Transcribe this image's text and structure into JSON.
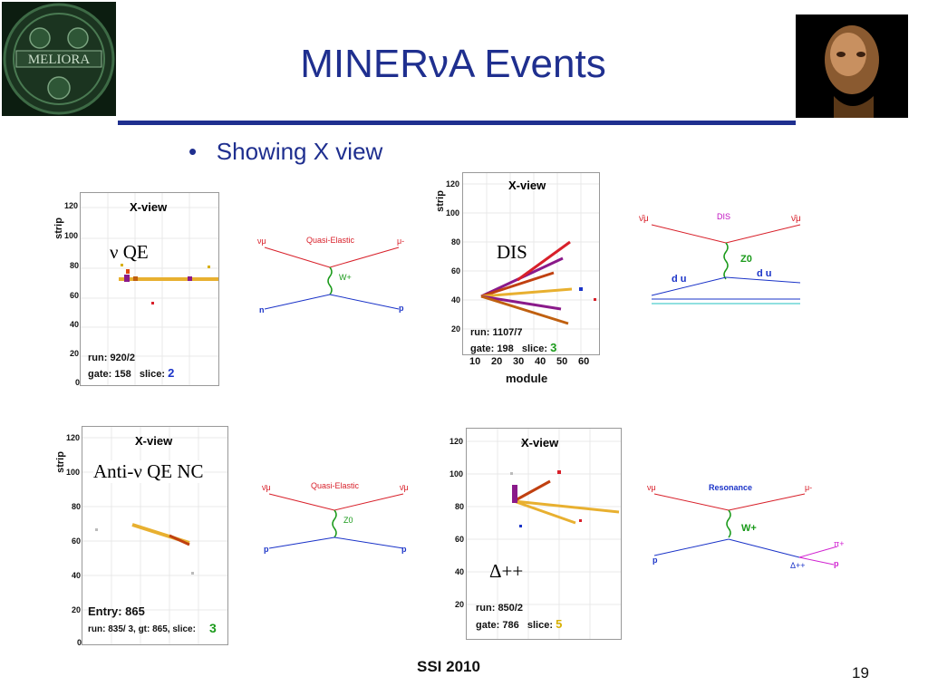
{
  "slide": {
    "title": "MINERνA Events",
    "bullet": "Showing X view",
    "footer": "SSI 2010",
    "page_number": "19",
    "logo_left_text": "MELIORA",
    "colors": {
      "title": "#1f2f8f",
      "rule": "#1f2f8f"
    }
  },
  "plots": {
    "p1": {
      "title": "X-view",
      "ylabel": "strip",
      "yticks": [
        "120",
        "100",
        "80",
        "60",
        "40",
        "20",
        "0"
      ],
      "run": "run: 920/2",
      "gate": "gate: 158",
      "slice_label": "slice:",
      "slice_value": "2",
      "slice_color": "#1a33c8",
      "annotation": "ν QE"
    },
    "p2": {
      "title": "X-view",
      "ylabel": "strip",
      "xlabel": "module",
      "yticks": [
        "120",
        "100",
        "80",
        "60",
        "40",
        "20"
      ],
      "xticks": [
        "10",
        "20",
        "30",
        "40",
        "50",
        "60"
      ],
      "run": "run: 1107/7",
      "gate": "gate: 198",
      "slice_label": "slice:",
      "slice_value": "3",
      "slice_color": "#1a9a1a",
      "annotation": "DIS"
    },
    "p3": {
      "title": "X-view",
      "ylabel": "strip",
      "yticks": [
        "120",
        "100",
        "80",
        "60",
        "40",
        "20",
        "0"
      ],
      "entry": "Entry: 865",
      "run": "run:  835/ 3,  gt:  865, slice:",
      "slice_value": "3",
      "slice_color": "#1a9a1a",
      "annotation": "Anti-ν QE NC"
    },
    "p4": {
      "title": "X-view",
      "yticks": [
        "120",
        "100",
        "80",
        "60",
        "40",
        "20"
      ],
      "run": "run: 850/2",
      "gate": "gate: 786",
      "slice_label": "slice:",
      "slice_value": "5",
      "slice_color": "#d8b000",
      "annotation": "Δ++"
    }
  },
  "diagrams": {
    "d1": {
      "title": "Quasi-Elastic",
      "in_top": "νμ",
      "out_top": "μ-",
      "boson": "W+",
      "in_bottom": "n",
      "out_bottom": "p"
    },
    "d2": {
      "title": "DIS",
      "in_top": "ν̄μ",
      "out_top": "ν̄μ",
      "boson": "Z0",
      "quarks_left": "d u",
      "quarks_right": "d u"
    },
    "d3": {
      "title": "Quasi-Elastic",
      "in_top": "ν̄μ",
      "out_top": "ν̄μ",
      "boson": "Z0",
      "in_bottom": "p",
      "out_bottom": "p"
    },
    "d4": {
      "title": "Resonance",
      "in_top": "νμ",
      "out_top": "μ-",
      "boson": "W+",
      "in_bottom": "p",
      "delta": "Δ++",
      "pion": "π+",
      "out_bottom": "p"
    }
  }
}
